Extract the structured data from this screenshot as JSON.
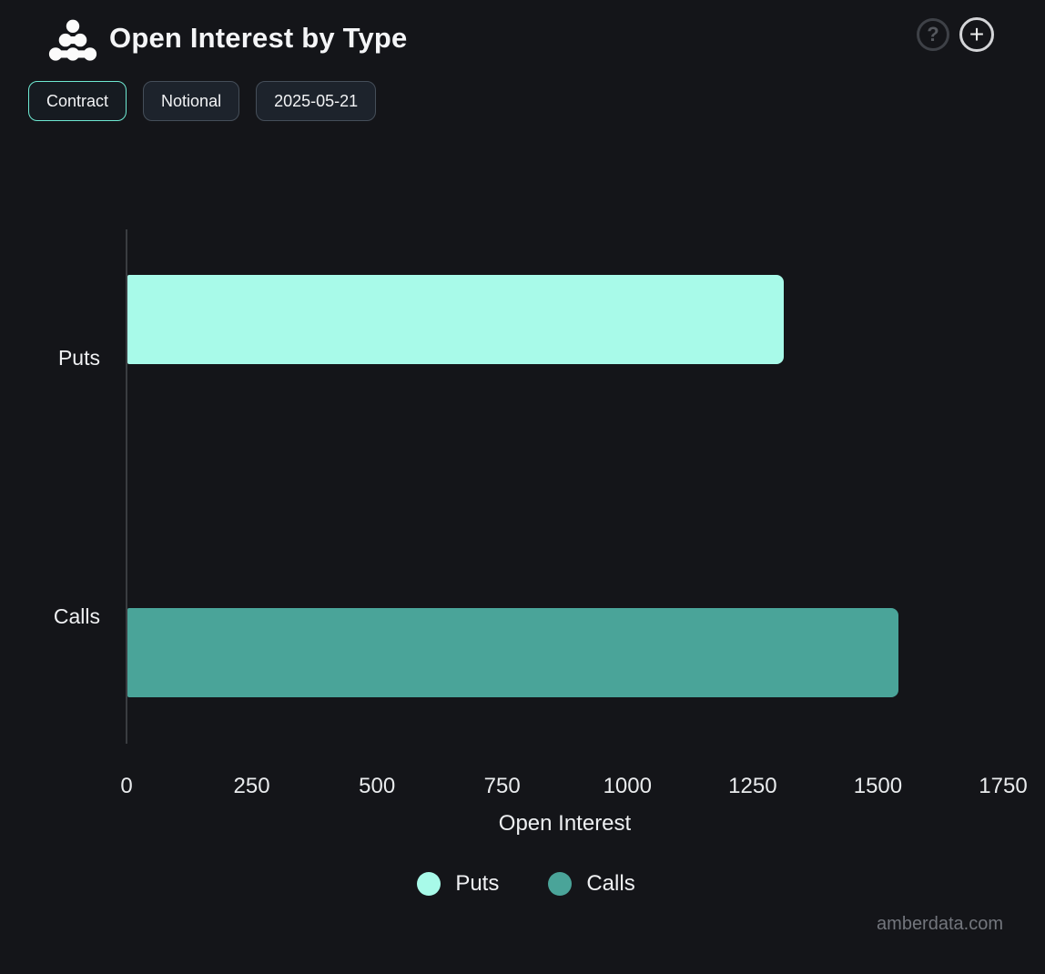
{
  "header": {
    "title": "Open Interest by Type",
    "help_glyph": "?",
    "add_glyph": "+"
  },
  "toolbar": {
    "buttons": [
      {
        "label": "Contract",
        "active": true
      },
      {
        "label": "Notional",
        "active": false
      },
      {
        "label": "2025-05-21",
        "active": false
      }
    ]
  },
  "chart_data": {
    "type": "bar",
    "orientation": "horizontal",
    "title": "Open Interest by Type",
    "categories": [
      "Puts",
      "Calls"
    ],
    "series": [
      {
        "name": "Puts",
        "value": 1310,
        "color": "#a8fae9"
      },
      {
        "name": "Calls",
        "value": 1540,
        "color": "#4aa499"
      }
    ],
    "xlabel": "Open Interest",
    "xlim": [
      0,
      1750
    ],
    "xticks": [
      0,
      250,
      500,
      750,
      1000,
      1250,
      1500,
      1750
    ],
    "grid": false,
    "legend_position": "bottom"
  },
  "colors": {
    "background": "#141519",
    "puts_bar": "#a8fae9",
    "calls_bar": "#4aa499",
    "active_button_border": "#6ee9d2",
    "button_border": "#454e59",
    "axis_line": "#3a3d41"
  },
  "watermark": "amberdata.com"
}
